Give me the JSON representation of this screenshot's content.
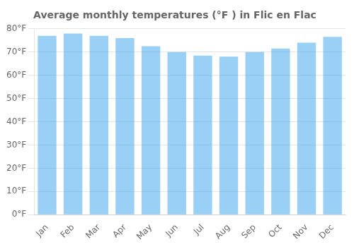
{
  "chart_data": {
    "type": "bar",
    "title": "Average monthly temperatures (°F ) in Flic en Flac",
    "categories": [
      "Jan",
      "Feb",
      "Mar",
      "Apr",
      "May",
      "Jun",
      "Jul",
      "Aug",
      "Sep",
      "Oct",
      "Nov",
      "Dec"
    ],
    "values": [
      77,
      78,
      77,
      76,
      72.5,
      70,
      68.5,
      68,
      70,
      71.5,
      74,
      76.5
    ],
    "ylim": [
      0,
      80
    ],
    "yticks": [
      {
        "value": 0,
        "label": "0°F"
      },
      {
        "value": 10,
        "label": "10°F"
      },
      {
        "value": 20,
        "label": "20°F"
      },
      {
        "value": 30,
        "label": "30°F"
      },
      {
        "value": 40,
        "label": "40°F"
      },
      {
        "value": 50,
        "label": "50°F"
      },
      {
        "value": 60,
        "label": "60°F"
      },
      {
        "value": 70,
        "label": "70°F"
      },
      {
        "value": 80,
        "label": "80°F"
      }
    ],
    "grid": true
  }
}
